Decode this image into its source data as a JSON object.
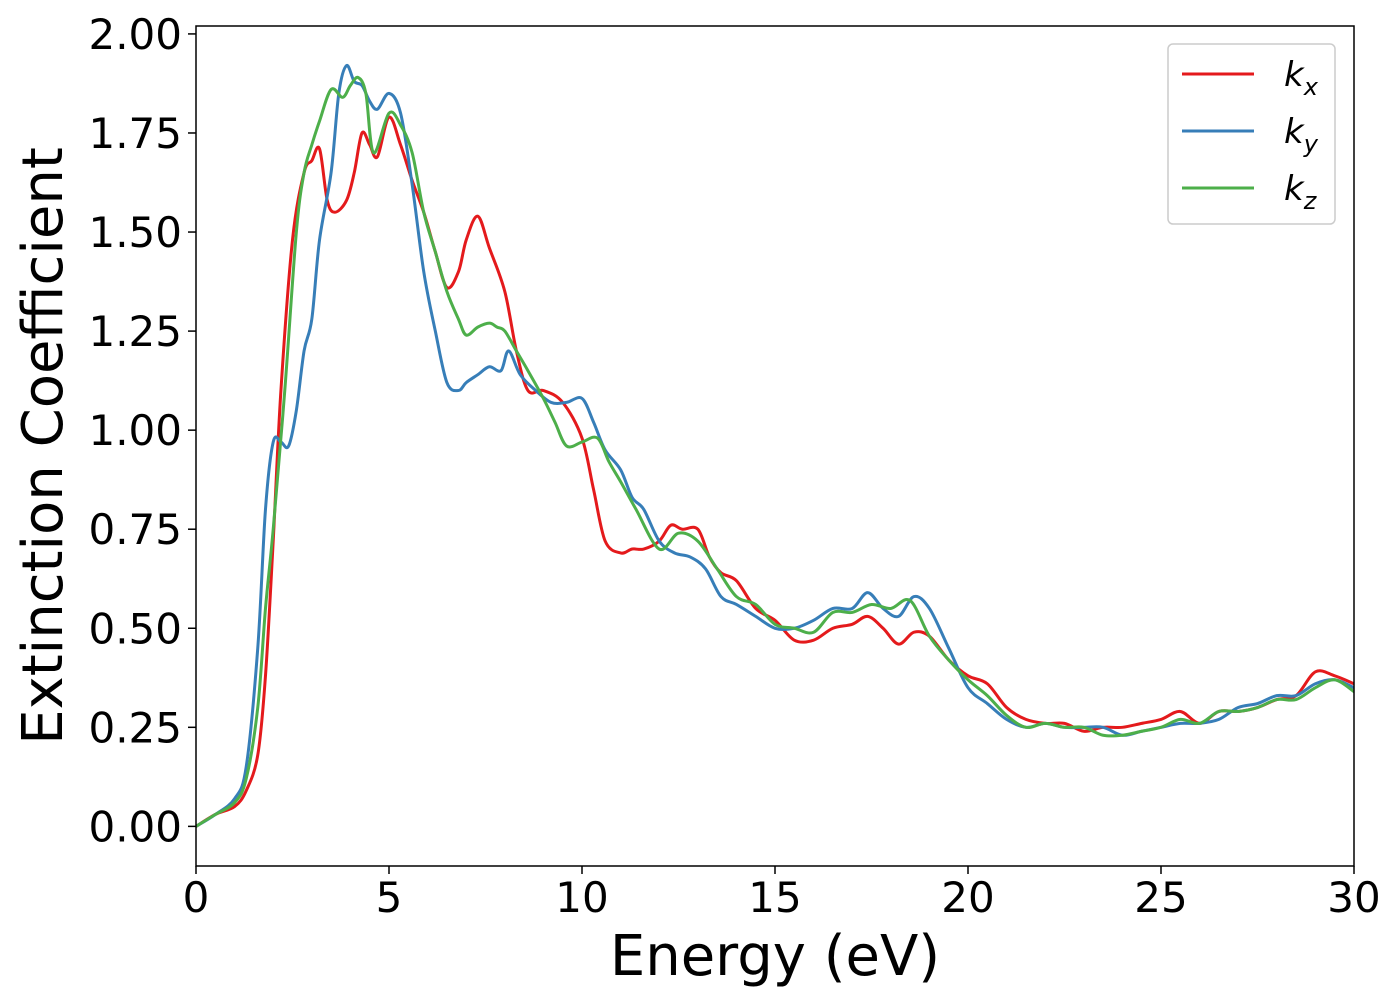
{
  "chart_data": {
    "type": "line",
    "xlabel": "Energy (eV)",
    "ylabel": "Extinction Coefficient",
    "xlim": [
      0,
      30
    ],
    "ylim": [
      -0.1,
      2.02
    ],
    "xticks": [
      0,
      5,
      10,
      15,
      20,
      25,
      30
    ],
    "yticks": [
      0.0,
      0.25,
      0.5,
      0.75,
      1.0,
      1.25,
      1.5,
      1.75,
      2.0
    ],
    "ytick_labels": [
      "0.00",
      "0.25",
      "0.50",
      "0.75",
      "1.00",
      "1.25",
      "1.50",
      "1.75",
      "2.00"
    ],
    "grid": false,
    "legend_position": "top-right",
    "series": [
      {
        "name": "kx",
        "legend_base": "k",
        "legend_sub": "x",
        "color": "#e41a1c",
        "x": [
          0,
          0.5,
          1.0,
          1.3,
          1.6,
          1.8,
          2.0,
          2.2,
          2.5,
          2.8,
          3.0,
          3.2,
          3.4,
          3.6,
          3.9,
          4.1,
          4.3,
          4.5,
          4.7,
          5.0,
          5.3,
          5.6,
          5.9,
          6.2,
          6.5,
          6.8,
          7.0,
          7.3,
          7.6,
          8.0,
          8.3,
          8.6,
          9.0,
          9.5,
          10.0,
          10.3,
          10.6,
          11.0,
          11.3,
          11.6,
          12.0,
          12.3,
          12.6,
          13.0,
          13.3,
          13.6,
          14.0,
          14.5,
          15.0,
          15.5,
          16.0,
          16.5,
          17.0,
          17.4,
          17.8,
          18.2,
          18.6,
          19.0,
          19.5,
          20.0,
          20.5,
          21.0,
          21.5,
          22.0,
          22.5,
          23.0,
          23.5,
          24.0,
          24.5,
          25.0,
          25.5,
          26.0,
          26.5,
          27.0,
          27.5,
          28.0,
          28.5,
          29.0,
          29.5,
          30.0
        ],
        "y": [
          0.0,
          0.03,
          0.05,
          0.09,
          0.18,
          0.38,
          0.72,
          1.1,
          1.48,
          1.65,
          1.68,
          1.71,
          1.58,
          1.55,
          1.58,
          1.65,
          1.75,
          1.72,
          1.69,
          1.79,
          1.72,
          1.63,
          1.55,
          1.45,
          1.36,
          1.4,
          1.48,
          1.54,
          1.46,
          1.35,
          1.2,
          1.1,
          1.1,
          1.07,
          0.98,
          0.85,
          0.72,
          0.69,
          0.7,
          0.7,
          0.72,
          0.76,
          0.75,
          0.75,
          0.68,
          0.64,
          0.62,
          0.55,
          0.52,
          0.47,
          0.47,
          0.5,
          0.51,
          0.53,
          0.5,
          0.46,
          0.49,
          0.48,
          0.42,
          0.38,
          0.36,
          0.3,
          0.27,
          0.26,
          0.26,
          0.24,
          0.25,
          0.25,
          0.26,
          0.27,
          0.29,
          0.26,
          0.29,
          0.29,
          0.3,
          0.32,
          0.33,
          0.39,
          0.38,
          0.36
        ]
      },
      {
        "name": "ky",
        "legend_base": "k",
        "legend_sub": "y",
        "color": "#377eb8",
        "x": [
          0,
          0.5,
          1.0,
          1.3,
          1.6,
          1.8,
          2.0,
          2.2,
          2.4,
          2.6,
          2.8,
          3.0,
          3.2,
          3.5,
          3.7,
          3.9,
          4.1,
          4.3,
          4.5,
          4.7,
          5.0,
          5.3,
          5.6,
          5.9,
          6.2,
          6.5,
          6.8,
          7.0,
          7.3,
          7.6,
          7.9,
          8.1,
          8.4,
          8.8,
          9.2,
          9.6,
          10.0,
          10.3,
          10.6,
          11.0,
          11.3,
          11.6,
          12.0,
          12.4,
          12.8,
          13.2,
          13.6,
          14.0,
          14.5,
          15.0,
          15.5,
          16.0,
          16.5,
          17.0,
          17.4,
          17.8,
          18.2,
          18.6,
          19.0,
          19.5,
          20.0,
          20.5,
          21.0,
          21.5,
          22.0,
          22.5,
          23.0,
          23.5,
          24.0,
          24.5,
          25.0,
          25.5,
          26.0,
          26.5,
          27.0,
          27.5,
          28.0,
          28.5,
          29.0,
          29.5,
          30.0
        ],
        "y": [
          0.0,
          0.03,
          0.07,
          0.15,
          0.45,
          0.8,
          0.97,
          0.97,
          0.96,
          1.05,
          1.2,
          1.28,
          1.48,
          1.65,
          1.85,
          1.92,
          1.88,
          1.87,
          1.83,
          1.81,
          1.85,
          1.8,
          1.62,
          1.4,
          1.25,
          1.12,
          1.1,
          1.12,
          1.14,
          1.16,
          1.15,
          1.2,
          1.14,
          1.1,
          1.07,
          1.07,
          1.08,
          1.02,
          0.95,
          0.9,
          0.83,
          0.8,
          0.72,
          0.69,
          0.68,
          0.65,
          0.58,
          0.56,
          0.53,
          0.5,
          0.5,
          0.52,
          0.55,
          0.55,
          0.59,
          0.55,
          0.53,
          0.58,
          0.55,
          0.45,
          0.35,
          0.31,
          0.27,
          0.25,
          0.26,
          0.25,
          0.25,
          0.25,
          0.23,
          0.24,
          0.25,
          0.26,
          0.26,
          0.27,
          0.3,
          0.31,
          0.33,
          0.33,
          0.36,
          0.37,
          0.35
        ]
      },
      {
        "name": "kz",
        "legend_base": "k",
        "legend_sub": "z",
        "color": "#4daf4a",
        "x": [
          0,
          0.5,
          1.0,
          1.3,
          1.6,
          1.8,
          2.0,
          2.3,
          2.6,
          2.8,
          3.0,
          3.2,
          3.5,
          3.8,
          4.0,
          4.2,
          4.4,
          4.6,
          5.0,
          5.3,
          5.6,
          5.9,
          6.2,
          6.5,
          6.8,
          7.0,
          7.3,
          7.6,
          7.8,
          8.0,
          8.3,
          8.6,
          9.0,
          9.3,
          9.6,
          10.0,
          10.4,
          10.7,
          11.0,
          11.4,
          12.0,
          12.5,
          13.0,
          13.5,
          14.0,
          14.5,
          15.0,
          15.5,
          16.0,
          16.5,
          17.0,
          17.5,
          18.0,
          18.5,
          19.0,
          19.5,
          20.0,
          20.5,
          21.0,
          21.5,
          22.0,
          22.5,
          23.0,
          23.5,
          24.0,
          24.5,
          25.0,
          25.5,
          26.0,
          26.5,
          27.0,
          27.5,
          28.0,
          28.5,
          29.0,
          29.5,
          30.0
        ],
        "y": [
          0.0,
          0.03,
          0.06,
          0.12,
          0.3,
          0.55,
          0.75,
          1.1,
          1.5,
          1.65,
          1.72,
          1.78,
          1.86,
          1.84,
          1.87,
          1.89,
          1.85,
          1.7,
          1.8,
          1.77,
          1.7,
          1.55,
          1.45,
          1.35,
          1.28,
          1.24,
          1.26,
          1.27,
          1.26,
          1.25,
          1.2,
          1.15,
          1.08,
          1.02,
          0.96,
          0.97,
          0.98,
          0.92,
          0.87,
          0.8,
          0.7,
          0.74,
          0.72,
          0.65,
          0.58,
          0.56,
          0.51,
          0.5,
          0.49,
          0.54,
          0.54,
          0.56,
          0.55,
          0.57,
          0.48,
          0.42,
          0.37,
          0.33,
          0.28,
          0.25,
          0.26,
          0.25,
          0.25,
          0.23,
          0.23,
          0.24,
          0.25,
          0.27,
          0.26,
          0.29,
          0.29,
          0.3,
          0.32,
          0.32,
          0.35,
          0.37,
          0.34
        ]
      }
    ]
  }
}
